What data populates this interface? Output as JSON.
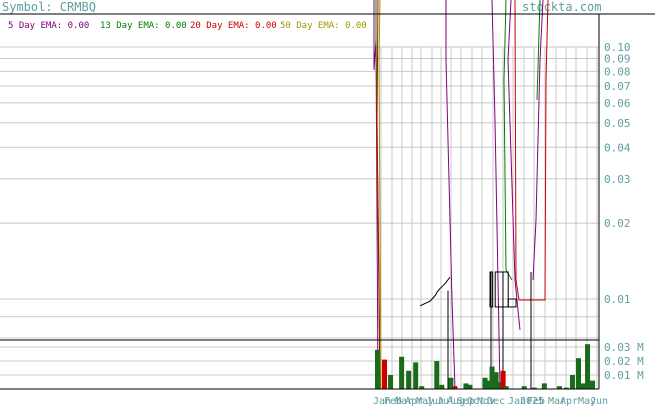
{
  "header": {
    "symbol_label": "Symbol: CRMBQ",
    "watermark": "stockta.com"
  },
  "colors": {
    "ema5": "#800080",
    "ema13": "#008000",
    "ema20": "#cc0000",
    "ema50": "#999900",
    "grid": "#c8c8c8",
    "axis_text": "#5f9ea0",
    "volume_up": "#1a6b1a",
    "volume_down": "#cc0000"
  },
  "legend": [
    {
      "label": "5 Day EMA: 0.00",
      "color": "#800080"
    },
    {
      "label": "13 Day EMA: 0.00",
      "color": "#008000"
    },
    {
      "label": "20 Day EMA: 0.00",
      "color": "#cc0000"
    },
    {
      "label": "50 Day EMA: 0.00",
      "color": "#999900"
    }
  ],
  "chart_data": {
    "type": "line",
    "price_scale": "log",
    "price_ticks": [
      0.1,
      0.09,
      0.08,
      0.07,
      0.06,
      0.05,
      0.04,
      0.03,
      0.02,
      0.01
    ],
    "price_tick_labels": [
      "0.10",
      "0.09",
      "0.08",
      "0.07",
      "0.06",
      "0.05",
      "0.04",
      "0.03",
      "0.02",
      "0.01"
    ],
    "volume_ticks": [
      0.03,
      0.02,
      0.01
    ],
    "volume_tick_labels": [
      "0.03 M",
      "0.02 M",
      "0.01 M"
    ],
    "volume_ylim": [
      0,
      0.035
    ],
    "month_labels": [
      "Jan",
      "Feb",
      "Mar",
      "Apr",
      "May",
      "Jun",
      "Jul",
      "Aug",
      "Sep",
      "Oct",
      "Nov",
      "Dec",
      "Jan",
      "2025",
      "Feb",
      "Mar",
      "Apr",
      "May",
      "Jun"
    ],
    "series": [
      {
        "name": "5 Day EMA",
        "color": "#800080"
      },
      {
        "name": "13 Day EMA",
        "color": "#008000"
      },
      {
        "name": "20 Day EMA",
        "color": "#cc0000"
      },
      {
        "name": "50 Day EMA",
        "color": "#999900"
      }
    ],
    "price_line": [
      {
        "t": 0.38,
        "v": 0.0094
      },
      {
        "t": 0.4,
        "v": 0.0098
      },
      {
        "t": 0.41,
        "v": 0.0103
      },
      {
        "t": 0.415,
        "v": 0.0107
      },
      {
        "t": 0.42,
        "v": 0.011
      },
      {
        "t": 0.43,
        "v": 0.0115
      },
      {
        "t": 0.44,
        "v": 0.0122
      }
    ],
    "boxes": [
      {
        "t0": 0.495,
        "t1": 0.5,
        "low": 0.0093,
        "high": 0.0128
      },
      {
        "t0": 0.505,
        "t1": 0.53,
        "low": 0.0093,
        "high": 0.0128
      },
      {
        "t0": 0.53,
        "t1": 0.545,
        "low": 0.0093,
        "high": 0.01
      }
    ],
    "volume_bars": [
      {
        "t": 0.374,
        "v": 0.028,
        "up": true
      },
      {
        "t": 0.381,
        "v": 0.021,
        "up": false
      },
      {
        "t": 0.387,
        "v": 0.01,
        "up": true
      },
      {
        "t": 0.398,
        "v": 0.023,
        "up": true
      },
      {
        "t": 0.405,
        "v": 0.013,
        "up": true
      },
      {
        "t": 0.412,
        "v": 0.019,
        "up": true
      },
      {
        "t": 0.418,
        "v": 0.002,
        "up": true
      },
      {
        "t": 0.433,
        "v": 0.02,
        "up": true
      },
      {
        "t": 0.438,
        "v": 0.003,
        "up": true
      },
      {
        "t": 0.447,
        "v": 0.008,
        "up": true
      },
      {
        "t": 0.451,
        "v": 0.002,
        "up": false
      },
      {
        "t": 0.462,
        "v": 0.004,
        "up": true
      },
      {
        "t": 0.466,
        "v": 0.003,
        "up": true
      },
      {
        "t": 0.481,
        "v": 0.008,
        "up": true
      },
      {
        "t": 0.484,
        "v": 0.006,
        "up": true
      },
      {
        "t": 0.488,
        "v": 0.016,
        "up": true
      },
      {
        "t": 0.492,
        "v": 0.012,
        "up": true
      },
      {
        "t": 0.496,
        "v": 0.005,
        "up": true
      },
      {
        "t": 0.499,
        "v": 0.013,
        "up": false
      },
      {
        "t": 0.502,
        "v": 0.002,
        "up": true
      },
      {
        "t": 0.52,
        "v": 0.002,
        "up": true
      },
      {
        "t": 0.53,
        "v": 0.001,
        "up": true
      },
      {
        "t": 0.54,
        "v": 0.004,
        "up": true
      },
      {
        "t": 0.555,
        "v": 0.002,
        "up": true
      },
      {
        "t": 0.562,
        "v": 0.001,
        "up": true
      },
      {
        "t": 0.568,
        "v": 0.01,
        "up": true
      },
      {
        "t": 0.574,
        "v": 0.022,
        "up": true
      },
      {
        "t": 0.578,
        "v": 0.004,
        "up": true
      },
      {
        "t": 0.583,
        "v": 0.032,
        "up": true
      },
      {
        "t": 0.588,
        "v": 0.006,
        "up": true
      }
    ]
  }
}
